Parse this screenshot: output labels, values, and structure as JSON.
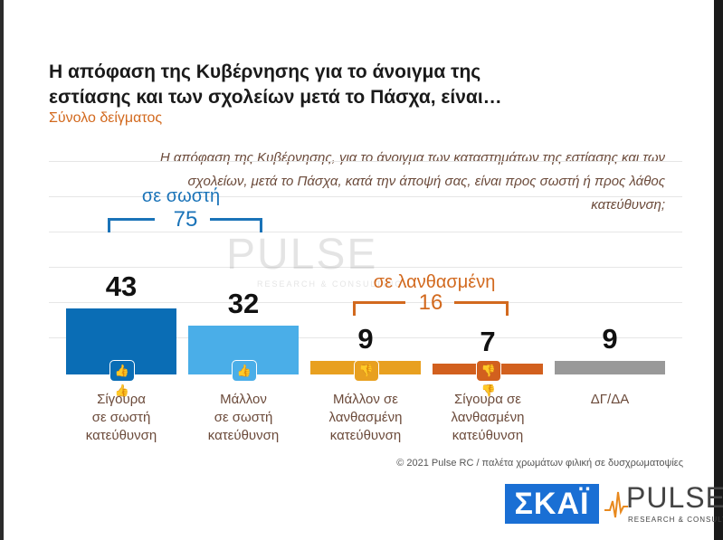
{
  "title": "Η απόφαση της Κυβέρνησης για το άνοιγμα της εστίασης και των σχολείων μετά το Πάσχα, είναι…",
  "subtitle": "Σύνολο δείγματος",
  "question": "Η απόφαση της Κυβέρνησης, για το άνοιγμα των καταστημάτων της εστίασης και των σχολείων, μετά το Πάσχα, κατά την άποψή σας, είναι προς σωστή ή προς λάθος κατεύθυνση;",
  "groups": {
    "correct": {
      "label": "σε σωστή",
      "value": "75",
      "color": "#1a73b8"
    },
    "wrong": {
      "label": "σε λανθασμένη",
      "value": "16",
      "color": "#d2691e"
    }
  },
  "chart_data": {
    "type": "bar",
    "title": "Η απόφαση της Κυβέρνησης για το άνοιγμα της εστίασης και των σχολείων μετά το Πάσχα, είναι…",
    "categories": [
      "Σίγουρα σε σωστή κατεύθυνση",
      "Μάλλον σε σωστή κατεύθυνση",
      "Μάλλον σε λανθασμένη κατεύθυνση",
      "Σίγουρα σε λανθασμένη κατεύθυνση",
      "ΔΓ/ΔΑ"
    ],
    "values": [
      43,
      32,
      9,
      7,
      9
    ],
    "colors": [
      "#0a6db5",
      "#4aaee8",
      "#e8a020",
      "#d2601e",
      "#999999"
    ],
    "icons": [
      "thumbs-up-double-icon",
      "thumbs-up-icon",
      "thumbs-down-icon",
      "thumbs-down-double-icon",
      ""
    ],
    "icon_glyphs": [
      "👍👍",
      "👍",
      "👎",
      "👎👎",
      ""
    ],
    "label_lines": [
      [
        "Σίγουρα",
        "σε σωστή",
        "κατεύθυνση"
      ],
      [
        "Μάλλον",
        "σε σωστή",
        "κατεύθυνση"
      ],
      [
        "Μάλλον σε",
        "λανθασμένη",
        "κατεύθυνση"
      ],
      [
        "Σίγουρα σε",
        "λανθασμένη",
        "κατεύθυνση"
      ],
      [
        "ΔΓ/ΔΑ"
      ]
    ],
    "ylim": [
      0,
      50
    ]
  },
  "watermark": {
    "text": "PULSE",
    "sub": "RESEARCH & CONSULTING"
  },
  "footer": "© 2021 Pulse RC  /  παλέτα χρωμάτων φιλική σε δυσχρωματοψίες",
  "logos": {
    "skai": "ΣΚΑΪ",
    "pulse": "PULSE",
    "pulse_sub": "RESEARCH & CONSULTING"
  }
}
